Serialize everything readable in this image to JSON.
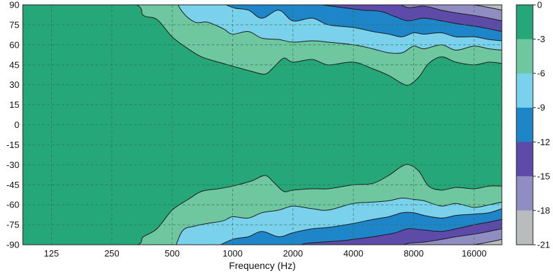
{
  "chart_data": {
    "type": "contour",
    "title": "",
    "xlabel": "Frequency (Hz)",
    "ylabel": "",
    "x_scale": "log2",
    "xlim": [
      90,
      22000
    ],
    "ylim": [
      -90,
      90
    ],
    "x_ticks": [
      125,
      250,
      500,
      1000,
      2000,
      4000,
      8000,
      16000
    ],
    "x_tick_labels": [
      "125",
      "250",
      "500",
      "1000",
      "2000",
      "4000",
      "8000",
      "16000"
    ],
    "y_ticks": [
      90,
      75,
      60,
      45,
      30,
      15,
      0,
      -15,
      -30,
      -45,
      -60,
      -75,
      -90
    ],
    "y_tick_labels": [
      "90",
      "75",
      "60",
      "45",
      "30",
      "15",
      "0",
      "-15",
      "-30",
      "-45",
      "-60",
      "-75",
      "-90"
    ],
    "grid": true,
    "colorbar": {
      "levels": [
        0,
        -3,
        -6,
        -9,
        -12,
        -15,
        -18,
        -21
      ],
      "labels": [
        "0",
        "-3",
        "-6",
        "-9",
        "-12",
        "-15",
        "-18",
        "-21"
      ],
      "colors": [
        "#25a77a",
        "#6fc7a0",
        "#7ad1ec",
        "#1e86c8",
        "#5e4aa8",
        "#8f8dc2",
        "#b9bcbd"
      ]
    },
    "colors": {
      "background": "#c3c6c8",
      "line": "#1a1a1a",
      "grid": "#2f6f4f"
    },
    "contours": [
      {
        "level": -3,
        "upper": {
          "x": [
            90,
            300,
            360,
            420,
            500,
            600,
            700,
            850,
            1000,
            1250,
            1450,
            1600,
            1800,
            2000,
            2500,
            3000,
            4000,
            5000,
            6000,
            7000,
            7600,
            8500,
            9500,
            11000,
            13000,
            16000,
            19000,
            22000
          ],
          "y": [
            99,
            92,
            82,
            79,
            66,
            57,
            51,
            47,
            44,
            40,
            38,
            43,
            50,
            47,
            49,
            45,
            47,
            42,
            37,
            31,
            30,
            36,
            46,
            51,
            47,
            45,
            47,
            46
          ]
        },
        "lower": {
          "x": [
            90,
            300,
            360,
            420,
            500,
            600,
            700,
            850,
            1000,
            1250,
            1450,
            1600,
            1800,
            2000,
            2500,
            3000,
            4000,
            5000,
            6000,
            7000,
            7600,
            8500,
            9500,
            11000,
            13000,
            16000,
            19000,
            22000
          ],
          "y": [
            -99,
            -92,
            -84,
            -78,
            -64,
            -56,
            -50,
            -48,
            -46,
            -42,
            -38,
            -43,
            -50,
            -49,
            -48,
            -48,
            -45,
            -44,
            -38,
            -31,
            -30,
            -35,
            -46,
            -49,
            -47,
            -48,
            -46,
            -46
          ]
        }
      },
      {
        "level": -6,
        "upper": {
          "x": [
            500,
            560,
            650,
            750,
            900,
            1000,
            1200,
            1400,
            1700,
            2000,
            2500,
            3000,
            4000,
            5000,
            6000,
            7000,
            8000,
            9000,
            11000,
            13000,
            16000,
            19000,
            22000
          ],
          "y": [
            99,
            85,
            77,
            77,
            72,
            68,
            70,
            65,
            64,
            62,
            63,
            62,
            60,
            57,
            54,
            54,
            59,
            57,
            60,
            56,
            59,
            57,
            56
          ]
        },
        "lower": {
          "x": [
            500,
            560,
            650,
            750,
            900,
            1000,
            1200,
            1400,
            1700,
            2000,
            2500,
            3000,
            4000,
            5000,
            6000,
            7000,
            8000,
            9000,
            11000,
            13000,
            16000,
            19000,
            22000
          ],
          "y": [
            -99,
            -80,
            -76,
            -74,
            -72,
            -69,
            -70,
            -66,
            -64,
            -61,
            -63,
            -64,
            -59,
            -58,
            -57,
            -55,
            -56,
            -57,
            -61,
            -59,
            -62,
            -60,
            -58
          ]
        }
      },
      {
        "level": -9,
        "upper": {
          "x": [
            700,
            800,
            1000,
            1200,
            1400,
            1700,
            2000,
            2500,
            3000,
            4000,
            5000,
            6000,
            7000,
            8000,
            9000,
            11000,
            13000,
            16000,
            19000,
            22000
          ],
          "y": [
            99,
            95,
            88,
            86,
            80,
            86,
            78,
            80,
            75,
            73,
            70,
            68,
            66,
            69,
            68,
            69,
            66,
            66,
            64,
            63
          ]
        },
        "lower": {
          "x": [
            700,
            800,
            1000,
            1200,
            1400,
            1700,
            2000,
            2500,
            3000,
            4000,
            5000,
            6000,
            7000,
            8000,
            9000,
            11000,
            13000,
            16000,
            19000,
            22000
          ],
          "y": [
            -99,
            -93,
            -86,
            -84,
            -80,
            -84,
            -81,
            -78,
            -77,
            -74,
            -71,
            -69,
            -66,
            -66,
            -68,
            -70,
            -68,
            -67,
            -66,
            -63
          ]
        }
      },
      {
        "level": -12,
        "upper": {
          "x": [
            1900,
            2200,
            2800,
            3500,
            4500,
            5500,
            6500,
            7500,
            9000,
            11000,
            13000,
            16000,
            19000,
            22000
          ],
          "y": [
            99,
            92,
            90,
            88,
            86,
            85,
            81,
            78,
            80,
            78,
            76,
            74,
            72,
            70
          ]
        },
        "lower": {
          "x": [
            1900,
            2200,
            2800,
            3500,
            4500,
            5500,
            6500,
            7500,
            9000,
            11000,
            13000,
            16000,
            19000,
            22000
          ],
          "y": [
            -99,
            -90,
            -88,
            -87,
            -85,
            -83,
            -81,
            -78,
            -79,
            -80,
            -78,
            -75,
            -73,
            -71
          ]
        }
      },
      {
        "level": -15,
        "upper": {
          "x": [
            4800,
            5500,
            6500,
            7500,
            9000,
            11000,
            13000,
            16000,
            19000,
            22000
          ],
          "y": [
            99,
            95,
            92,
            88,
            89,
            86,
            84,
            82,
            80,
            78
          ]
        },
        "lower": {
          "x": [
            4800,
            5500,
            6500,
            7500,
            9000,
            11000,
            13000,
            16000,
            19000,
            22000
          ],
          "y": [
            -99,
            -94,
            -92,
            -89,
            -88,
            -86,
            -84,
            -82,
            -80,
            -78
          ]
        }
      },
      {
        "level": -18,
        "upper": {
          "x": [
            9500,
            11000,
            13000,
            16000,
            19000,
            22000
          ],
          "y": [
            99,
            95,
            92,
            90,
            88,
            86
          ]
        },
        "lower": {
          "x": [
            9500,
            11000,
            13000,
            16000,
            19000,
            22000
          ],
          "y": [
            -99,
            -95,
            -92,
            -90,
            -88,
            -86
          ]
        }
      }
    ]
  }
}
